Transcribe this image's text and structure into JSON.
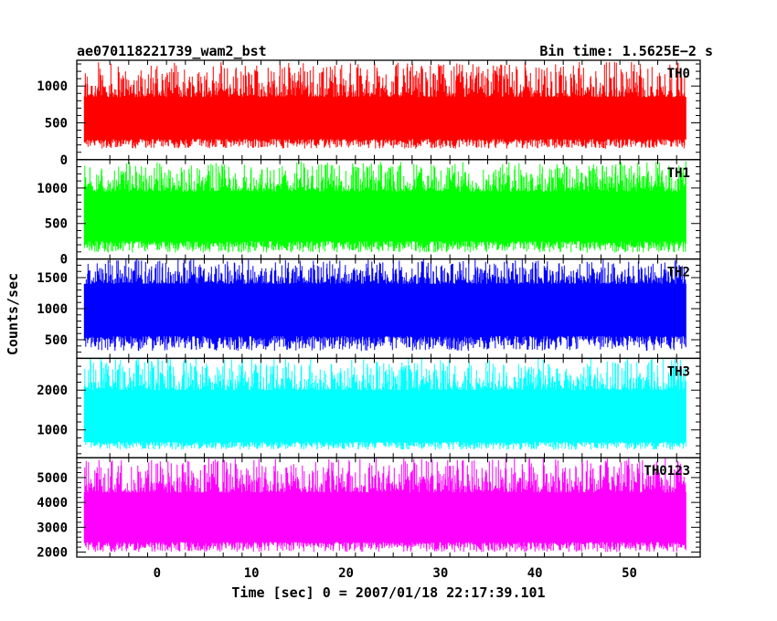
{
  "chart_data": {
    "type": "line",
    "title": "ae070118221739_wam2_bst",
    "subtitle": "Bin time: 1.5625E−2 s",
    "xlabel": "Time [sec] 0 = 2007/01/18 22:17:39.101",
    "ylabel": "Counts/sec",
    "xlim": [
      -8.5,
      57.5
    ],
    "xticks": [
      0,
      10,
      20,
      30,
      40,
      50
    ],
    "data_x_range": [
      -7.7,
      56.0
    ],
    "grid": false,
    "panels": [
      {
        "name": "TH0",
        "color": "#ff0000",
        "ylim": [
          0,
          1350
        ],
        "yticks": [
          0,
          500,
          1000
        ],
        "series_summary": {
          "baseline_low": 150,
          "band_low": 280,
          "band_high": 850,
          "peak_max": 1330
        }
      },
      {
        "name": "TH1",
        "color": "#00ff00",
        "ylim": [
          0,
          1400
        ],
        "yticks": [
          0,
          500,
          1000
        ],
        "series_summary": {
          "baseline_low": 90,
          "band_low": 250,
          "band_high": 950,
          "peak_max": 1380
        }
      },
      {
        "name": "TH2",
        "color": "#0000ff",
        "ylim": [
          200,
          1800
        ],
        "yticks": [
          500,
          1000,
          1500
        ],
        "series_summary": {
          "baseline_low": 320,
          "band_low": 560,
          "band_high": 1400,
          "peak_max": 1800
        }
      },
      {
        "name": "TH3",
        "color": "#00ffff",
        "ylim": [
          300,
          2800
        ],
        "yticks": [
          1000,
          2000
        ],
        "series_summary": {
          "baseline_low": 500,
          "band_low": 700,
          "band_high": 2000,
          "peak_max": 2800
        }
      },
      {
        "name": "TH0123",
        "color": "#ff00ff",
        "ylim": [
          1800,
          5800
        ],
        "yticks": [
          2000,
          3000,
          4000,
          5000
        ],
        "series_summary": {
          "baseline_low": 2000,
          "band_low": 2400,
          "band_high": 4400,
          "peak_max": 5800
        }
      }
    ]
  }
}
